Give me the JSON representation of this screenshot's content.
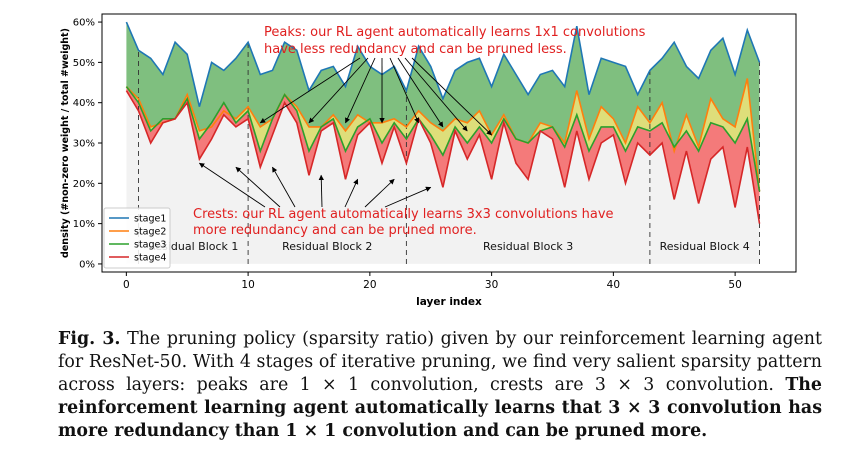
{
  "chart_data": {
    "type": "area",
    "xlabel": "layer index",
    "ylabel": "density (#non-zero weight / total #weight)",
    "xlim": [
      -2,
      55
    ],
    "ylim": [
      -2,
      62
    ],
    "x_ticks": [
      "0",
      "10",
      "20",
      "30",
      "40",
      "50"
    ],
    "y_ticks": [
      "0%",
      "10%",
      "20%",
      "30%",
      "40%",
      "50%",
      "60%"
    ],
    "legend_position": "lower-left",
    "series": [
      {
        "name": "stage1",
        "color": "#1f77b4",
        "fill": "#7fbf7f",
        "values": [
          60,
          53,
          51,
          47,
          55,
          52,
          39,
          50,
          48,
          51,
          55,
          47,
          48,
          55,
          53,
          43,
          48,
          49,
          44,
          54,
          49,
          47,
          49,
          43,
          54,
          49,
          41,
          48,
          50,
          51,
          44,
          52,
          47,
          42,
          47,
          48,
          44,
          59,
          42,
          51,
          50,
          49,
          42,
          48,
          51,
          55,
          49,
          46,
          53,
          56,
          47,
          58,
          50
        ]
      },
      {
        "name": "stage2",
        "color": "#ff7f0e",
        "fill": "#dede7a",
        "values": [
          44,
          41,
          34,
          35,
          36,
          42,
          33,
          34,
          38,
          36,
          39,
          34,
          36,
          42,
          39,
          34,
          34,
          37,
          33,
          37,
          35,
          35,
          36,
          34,
          38,
          35,
          33,
          36,
          35,
          38,
          32,
          37,
          31,
          30,
          35,
          34,
          30,
          43,
          31,
          39,
          36,
          30,
          39,
          35,
          40,
          28,
          37,
          29,
          41,
          36,
          34,
          46,
          18
        ]
      },
      {
        "name": "stage3",
        "color": "#2ca02c",
        "fill": "#f47a7a",
        "values": [
          44,
          40,
          33,
          36,
          36,
          41,
          31,
          35,
          40,
          35,
          38,
          28,
          36,
          42,
          38,
          28,
          34,
          36,
          28,
          34,
          36,
          30,
          35,
          31,
          36,
          32,
          27,
          34,
          30,
          34,
          30,
          36,
          31,
          30,
          33,
          34,
          29,
          37,
          28,
          34,
          34,
          28,
          34,
          33,
          35,
          29,
          33,
          28,
          35,
          34,
          30,
          36,
          18
        ]
      },
      {
        "name": "stage4",
        "color": "#d62728",
        "fill": "#f2f2f2",
        "values": [
          43,
          38,
          30,
          35,
          36,
          40,
          26,
          31,
          37,
          34,
          36,
          24,
          32,
          40,
          35,
          22,
          33,
          35,
          21,
          32,
          35,
          25,
          34,
          25,
          36,
          30,
          19,
          33,
          26,
          32,
          21,
          35,
          25,
          21,
          33,
          31,
          19,
          33,
          21,
          30,
          32,
          20,
          30,
          27,
          30,
          16,
          28,
          15,
          26,
          29,
          14,
          29,
          10
        ]
      }
    ],
    "block_labels": [
      "Residual Block 1",
      "Residual Block 2",
      "Residual Block 3",
      "Residual Block 4"
    ],
    "block_dividers_x": [
      1,
      10,
      23,
      43,
      52
    ],
    "peak_annotation": {
      "lines": [
        "Peaks: our RL agent automatically learns 1x1 convolutions",
        "have less redundancy and can be pruned less."
      ],
      "arrow_targets": [
        [
          11,
          35
        ],
        [
          15,
          35
        ],
        [
          18,
          35
        ],
        [
          21,
          35
        ],
        [
          24,
          35
        ],
        [
          26,
          34
        ],
        [
          28,
          33
        ],
        [
          30,
          32
        ]
      ]
    },
    "crest_annotation": {
      "lines": [
        "Crests: our RL agent automatically learns 3x3 convolutions have",
        "more redundancy and can be pruned more."
      ],
      "arrow_targets": [
        [
          6,
          25
        ],
        [
          9,
          24
        ],
        [
          12,
          24
        ],
        [
          16,
          22
        ],
        [
          19,
          21
        ],
        [
          22,
          21
        ],
        [
          25,
          19
        ]
      ]
    },
    "annotation_color": "#e02020",
    "grid": false
  },
  "caption": {
    "fig_label": "Fig. 3.",
    "plain_text": " The pruning policy (sparsity ratio) given by our reinforcement learning agent for ResNet-50. With 4 stages of iterative pruning, we find very salient sparsity pattern across layers: peaks are 1 × 1 convolution, crests are 3 × 3 convolution. ",
    "bold_text": "The reinforcement learning agent automatically learns that 3 × 3 convolution has more redundancy than 1 × 1 convolution and can be pruned more."
  }
}
